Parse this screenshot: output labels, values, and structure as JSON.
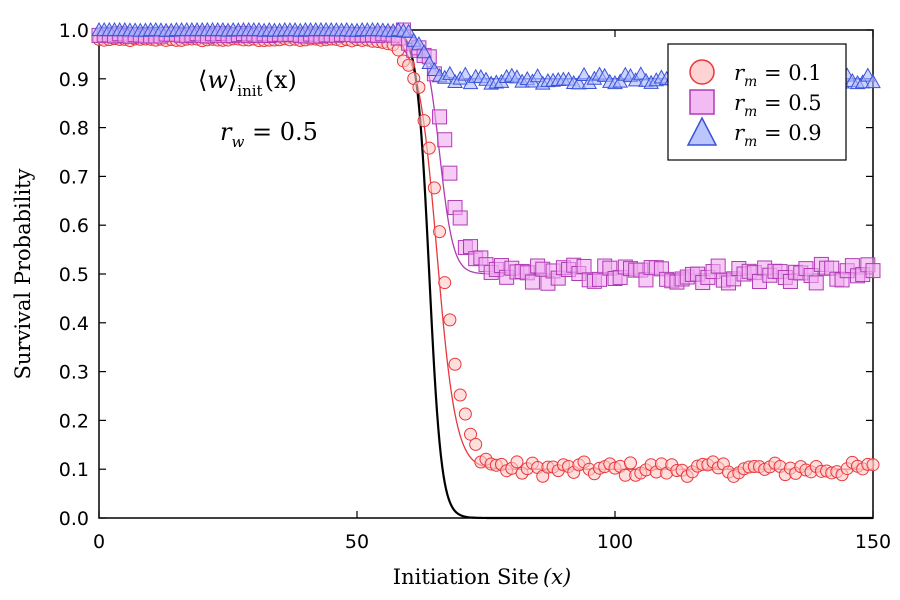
{
  "chart_data": {
    "type": "scatter",
    "title": "",
    "xlabel": "Initiation Site (x)",
    "ylabel": "Survival Probability",
    "xlim": [
      0,
      150
    ],
    "ylim": [
      0,
      1
    ],
    "xticks": [
      "0",
      "50",
      "100",
      "150"
    ],
    "yticks": [
      "0.0",
      "0.1",
      "0.2",
      "0.3",
      "0.4",
      "0.5",
      "0.6",
      "0.7",
      "0.8",
      "0.9",
      "1.0"
    ],
    "grid": false,
    "legend_position": "top-right",
    "annotations": [
      "⟨w⟩init(x)",
      "rw = 0.5"
    ],
    "transition_center": 64,
    "series": [
      {
        "name": "rm = 0.1",
        "marker": "circle",
        "color": "#e8383b",
        "fill": "#ffc8c8",
        "plateau_high": 0.98,
        "plateau_low": 0.1,
        "noise": 0.015
      },
      {
        "name": "rm = 0.5",
        "marker": "square",
        "color": "#b03bb5",
        "fill": "#f0aaf0",
        "plateau_high": 0.99,
        "plateau_low": 0.5,
        "noise": 0.02
      },
      {
        "name": "rm = 0.9",
        "marker": "triangle",
        "color": "#3a52d6",
        "fill": "#aab8ff",
        "plateau_high": 1.0,
        "plateau_low": 0.9,
        "noise": 0.01
      }
    ],
    "reference_curve": {
      "name": "black",
      "color": "#000000",
      "high": 1.0,
      "low": 0.0
    }
  },
  "legend": {
    "items": [
      {
        "var": "r",
        "sub": "m",
        "value": " = 0.1"
      },
      {
        "var": "r",
        "sub": "m",
        "value": " = 0.5"
      },
      {
        "var": "r",
        "sub": "m",
        "value": " = 0.9"
      }
    ]
  },
  "annotation": {
    "line1_open": "⟨",
    "line1_var": "w",
    "line1_close": "⟩",
    "line1_sub": "init",
    "line1_arg": "(x)",
    "line2_var": "r",
    "line2_sub": "w",
    "line2_value": " = 0.5"
  },
  "axes": {
    "xlabel_main": "Initiation Site",
    "xlabel_var": "(x)",
    "ylabel": "Survival Probability"
  }
}
